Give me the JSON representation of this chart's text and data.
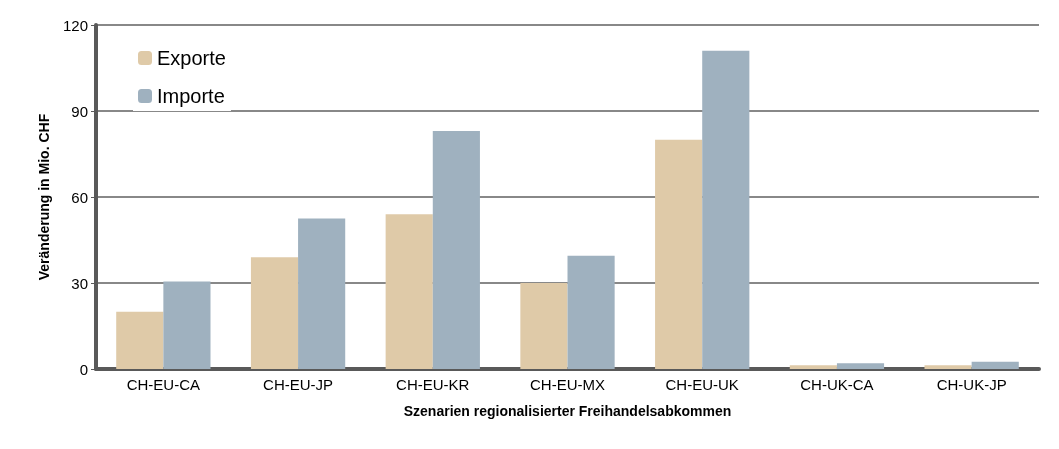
{
  "chart_data": {
    "type": "bar",
    "xlabel": "Szenarien regionalisierter Freihandelsabkommen",
    "ylabel": "Veränderung in Mio. CHF",
    "categories": [
      "CH-EU-CA",
      "CH-EU-JP",
      "CH-EU-KR",
      "CH-EU-MX",
      "CH-EU-UK",
      "CH-UK-CA",
      "CH-UK-JP"
    ],
    "series": [
      {
        "name": "Exporte",
        "color": "#dfcaa8",
        "values": [
          20,
          39,
          54,
          30,
          80,
          1.3,
          1.3
        ]
      },
      {
        "name": "Importe",
        "color": "#9fb1bf",
        "values": [
          30.5,
          52.5,
          83,
          39.5,
          111,
          2,
          2.5
        ]
      }
    ],
    "ylim": [
      0,
      120
    ],
    "yticks": [
      0,
      30,
      60,
      90,
      120
    ],
    "grid": "y",
    "legend": "top left"
  }
}
